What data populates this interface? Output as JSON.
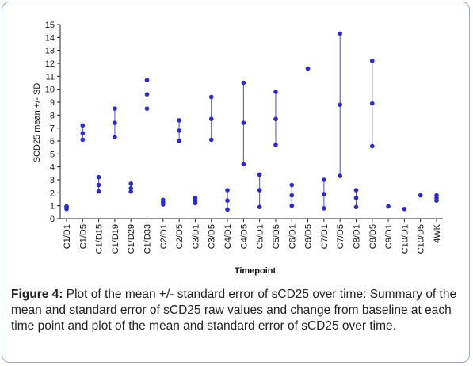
{
  "caption": {
    "label": "Figure 4:",
    "text": " Plot of the mean +/- standard error of sCD25 over time: Summary of the mean and standard error of sCD25 raw values and change from baseline at each time point and plot of the mean and standard error of sCD25 over time."
  },
  "chart_data": {
    "type": "scatter",
    "subtype": "error-bar",
    "title": "",
    "xlabel": "Timepoint",
    "ylabel": "SCD25 mean +/- SD",
    "ylim": [
      0,
      15
    ],
    "yticks": [
      0,
      1,
      2,
      3,
      4,
      5,
      6,
      7,
      8,
      9,
      10,
      11,
      12,
      13,
      14,
      15
    ],
    "grid": false,
    "marker_color": "#2a2ad0",
    "line_color": "#4b4bd8",
    "categories": [
      "C1/D1",
      "C1/D5",
      "C1/D15",
      "C1/D19",
      "C1/D29",
      "C1/D33",
      "C2/D1",
      "C2/D5",
      "C3/D1",
      "C3/D5",
      "C4/D1",
      "C4/D5",
      "C5/D1",
      "C5/D5",
      "C6/D1",
      "C6/D5",
      "C7/D1",
      "C7/D5",
      "C8/D1",
      "C8/D5",
      "C9/D1",
      "C10/D1",
      "C10/D5",
      "4WK"
    ],
    "groups": [
      [
        {
          "low": 0.75,
          "mean": 0.9,
          "high": 0.95
        }
      ],
      [
        {
          "low": 6.1,
          "mean": 6.6,
          "high": 7.2
        }
      ],
      [
        {
          "low": 2.1,
          "mean": 2.6,
          "high": 3.2
        }
      ],
      [
        {
          "low": 6.3,
          "mean": 7.4,
          "high": 8.5
        }
      ],
      [
        {
          "low": 2.1,
          "mean": 2.35,
          "high": 2.7
        }
      ],
      [
        {
          "low": 8.5,
          "mean": 9.6,
          "high": 10.7
        }
      ],
      [
        {
          "low": 1.1,
          "mean": 1.25,
          "high": 1.45
        }
      ],
      [
        {
          "low": 6.0,
          "mean": 6.8,
          "high": 7.6
        }
      ],
      [
        {
          "low": 1.2,
          "mean": 1.4,
          "high": 1.6
        }
      ],
      [
        {
          "low": 6.1,
          "mean": 7.7,
          "high": 9.4
        }
      ],
      [
        {
          "low": 0.7,
          "mean": 1.4,
          "high": 2.2
        }
      ],
      [
        {
          "low": 4.2,
          "mean": 7.4,
          "high": 10.5
        }
      ],
      [
        {
          "low": 0.9,
          "mean": 2.2,
          "high": 3.4
        }
      ],
      [
        {
          "low": 5.7,
          "mean": 7.7,
          "high": 9.8
        }
      ],
      [
        {
          "low": 1.0,
          "mean": 1.8,
          "high": 2.6
        }
      ],
      [
        {
          "low": 11.6,
          "mean": 11.6,
          "high": 11.6
        }
      ],
      [
        {
          "low": 0.8,
          "mean": 1.9,
          "high": 3.0
        }
      ],
      [
        {
          "low": 3.3,
          "mean": 8.8,
          "high": 14.3
        }
      ],
      [
        {
          "low": 0.9,
          "mean": 1.6,
          "high": 2.2
        }
      ],
      [
        {
          "low": 5.6,
          "mean": 8.9,
          "high": 12.2
        }
      ],
      [
        {
          "low": 0.95,
          "mean": 0.95,
          "high": 0.95
        }
      ],
      [
        {
          "low": 0.75,
          "mean": 0.75,
          "high": 0.75
        }
      ],
      [
        {
          "low": 1.8,
          "mean": 1.8,
          "high": 1.8
        }
      ],
      [
        {
          "low": 1.4,
          "mean": 1.6,
          "high": 1.8
        }
      ]
    ]
  }
}
